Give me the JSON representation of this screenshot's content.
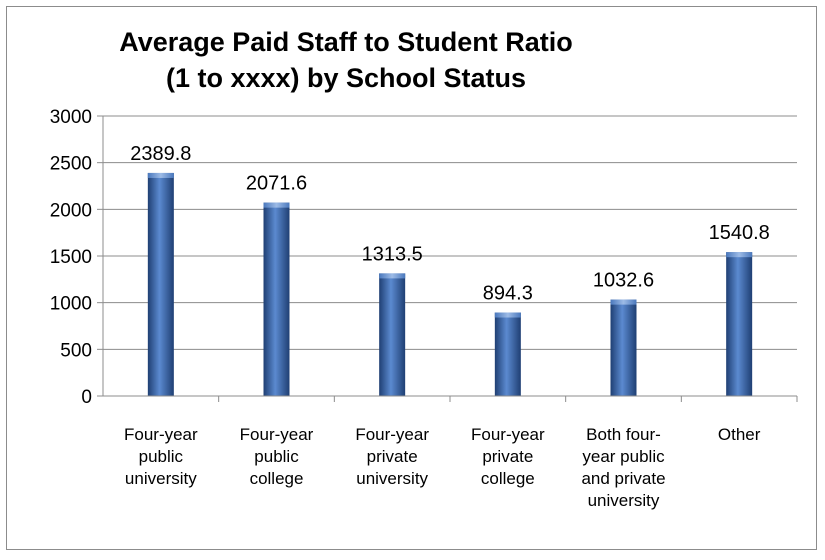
{
  "chart_data": {
    "type": "bar",
    "title_lines": [
      "Average Paid Staff to Student Ratio",
      "(1 to xxxx) by School Status"
    ],
    "categories": [
      [
        "Four-year",
        "public",
        "university"
      ],
      [
        "Four-year",
        "public",
        "college"
      ],
      [
        "Four-year",
        "private",
        "university"
      ],
      [
        "Four-year",
        "private",
        "college"
      ],
      [
        "Both four-",
        "year public",
        "and private",
        "university"
      ],
      [
        "Other"
      ]
    ],
    "values": [
      2389.8,
      2071.6,
      1313.5,
      894.3,
      1032.6,
      1540.8
    ],
    "data_labels": [
      "2389.8",
      "2071.6",
      "1313.5",
      "894.3",
      "1032.6",
      "1540.8"
    ],
    "ylim": [
      0,
      3000
    ],
    "yticks": [
      0,
      500,
      1000,
      1500,
      2000,
      2500,
      3000
    ],
    "ytick_labels": [
      "0",
      "500",
      "1000",
      "1500",
      "2000",
      "2500",
      "3000"
    ],
    "grid": true,
    "legend": "none",
    "bar_color": "#2e5fa3"
  }
}
